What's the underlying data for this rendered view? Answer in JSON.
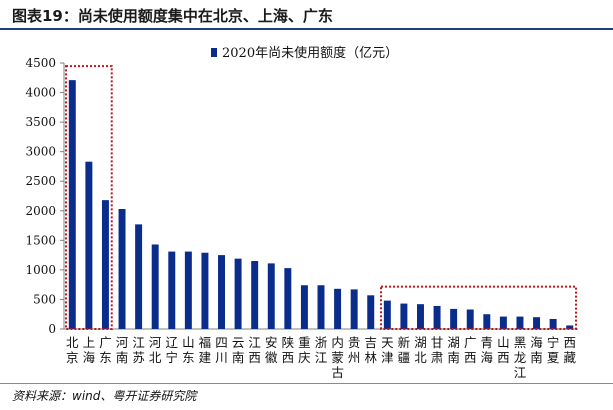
{
  "header": {
    "title": "图表19：尚未使用额度集中在北京、上海、广东"
  },
  "footer": {
    "source": "资料来源：wind、粤开证券研究院"
  },
  "chart_data": {
    "type": "bar",
    "title": "",
    "xlabel": "",
    "ylabel": "",
    "ylim": [
      0,
      4500
    ],
    "yticks": [
      0,
      500,
      1000,
      1500,
      2000,
      2500,
      3000,
      3500,
      4000,
      4500
    ],
    "grid": false,
    "legend_position": "top-center",
    "colors": {
      "bar": "#0a2d8c",
      "highlight_box": "#c0141b",
      "axis": "#808080"
    },
    "categories": [
      "北京",
      "上海",
      "广东",
      "河南",
      "江苏",
      "河北",
      "辽宁",
      "山东",
      "福建",
      "四川",
      "云南",
      "江西",
      "安徽",
      "陕西",
      "重庆",
      "浙江",
      "内蒙古",
      "贵州",
      "吉林",
      "天津",
      "新疆",
      "湖北",
      "甘肃",
      "湖南",
      "广西",
      "青海",
      "山西",
      "黑龙江",
      "海南",
      "宁夏",
      "西藏"
    ],
    "series": [
      {
        "name": "2020年尚未使用额度（亿元）",
        "values": [
          4210,
          2830,
          2180,
          2030,
          1770,
          1430,
          1310,
          1310,
          1290,
          1250,
          1190,
          1150,
          1110,
          1030,
          740,
          740,
          680,
          670,
          570,
          480,
          430,
          420,
          390,
          340,
          330,
          250,
          210,
          210,
          200,
          170,
          60
        ]
      }
    ],
    "highlight_groups": [
      {
        "from": "北京",
        "to": "广东"
      },
      {
        "from": "天津",
        "to": "西藏"
      }
    ]
  }
}
